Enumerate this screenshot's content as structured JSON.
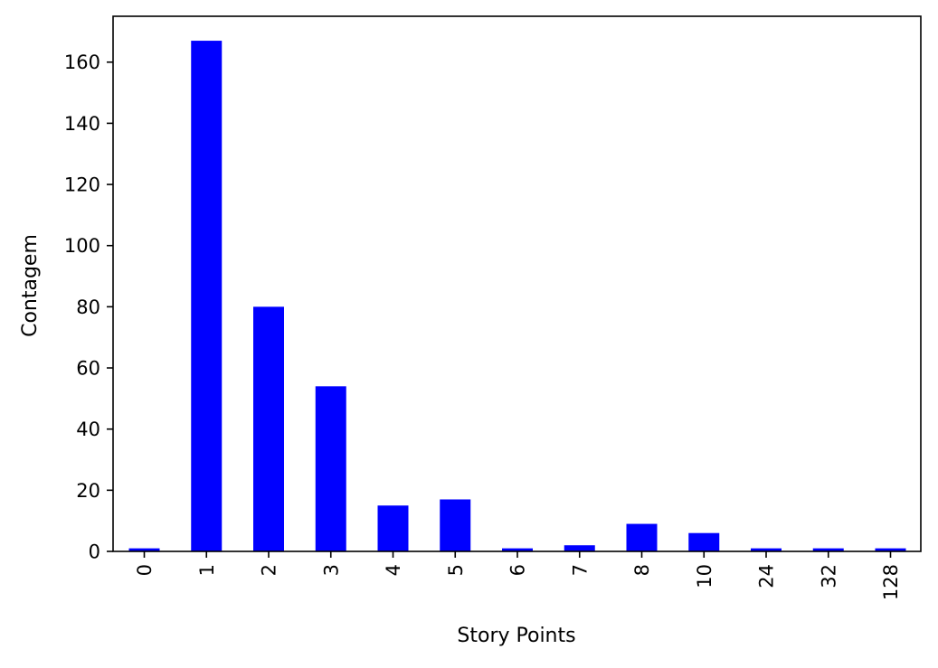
{
  "chart_data": {
    "type": "bar",
    "title": "",
    "xlabel": "Story Points",
    "ylabel": "Contagem",
    "categories": [
      "0",
      "1",
      "2",
      "3",
      "4",
      "5",
      "6",
      "7",
      "8",
      "10",
      "24",
      "32",
      "128"
    ],
    "values": [
      1,
      167,
      80,
      54,
      15,
      17,
      1,
      2,
      9,
      6,
      1,
      1,
      1
    ],
    "ylim": [
      0,
      175
    ],
    "yticks": [
      0,
      20,
      40,
      60,
      80,
      100,
      120,
      140,
      160
    ],
    "bar_color": "#0000ff",
    "grid": false,
    "legend": "none",
    "xtick_rotation": "vertical"
  }
}
